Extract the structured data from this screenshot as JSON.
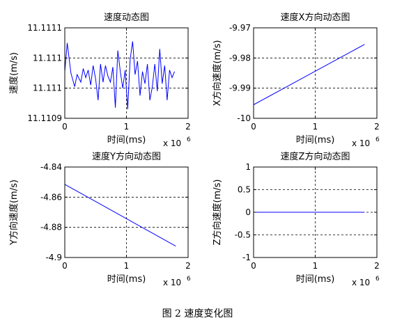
{
  "caption": "图 2  速度变化图",
  "chart_data": [
    {
      "type": "line",
      "title": "速度动态图",
      "xlabel": "时间(ms)",
      "ylabel": "速度(m/s)",
      "x_exponent_label": "x 10",
      "x_exponent": "6",
      "xlim": [
        0,
        2
      ],
      "ylim": [
        0,
        3
      ],
      "x_ticks": [
        {
          "v": 0,
          "label": "0"
        },
        {
          "v": 1,
          "label": "1"
        },
        {
          "v": 2,
          "label": "2"
        }
      ],
      "y_ticks": [
        {
          "v": 0,
          "label": "11.1109"
        },
        {
          "v": 1,
          "label": "11.111"
        },
        {
          "v": 2,
          "label": "11.111"
        },
        {
          "v": 3,
          "label": "11.1111"
        }
      ],
      "grid": true,
      "line_color": "#0000ff",
      "series": [
        {
          "x": [
            0,
            0.04,
            0.1,
            0.16,
            0.2,
            0.26,
            0.3,
            0.34,
            0.38,
            0.42,
            0.46,
            0.5,
            0.54,
            0.58,
            0.62,
            0.66,
            0.7,
            0.74,
            0.78,
            0.82,
            0.86,
            0.9,
            0.94,
            0.98,
            1.02,
            1.06,
            1.1,
            1.14,
            1.18,
            1.22,
            1.26,
            1.3,
            1.34,
            1.38,
            1.42,
            1.46,
            1.5,
            1.54,
            1.58,
            1.62,
            1.66,
            1.7,
            1.74,
            1.78
          ],
          "y": [
            1.55,
            2.5,
            1.5,
            1.05,
            1.45,
            1.2,
            1.65,
            1.35,
            1.6,
            1.1,
            1.75,
            1.3,
            0.6,
            1.8,
            1.2,
            1.75,
            1.4,
            1.2,
            1.7,
            0.35,
            2.25,
            1.55,
            1.0,
            1.6,
            0.3,
            1.95,
            2.55,
            1.45,
            1.9,
            0.75,
            1.55,
            1.15,
            1.8,
            0.6,
            1.05,
            1.8,
            0.9,
            2.3,
            1.15,
            1.75,
            0.6,
            1.6,
            1.35,
            1.55
          ]
        }
      ]
    },
    {
      "type": "line",
      "title": "速度X方向动态图",
      "xlabel": "时间(ms)",
      "ylabel": "X方向速度(m/s)",
      "x_exponent_label": "x 10",
      "x_exponent": "6",
      "xlim": [
        0,
        2
      ],
      "ylim": [
        -10,
        -9.97
      ],
      "x_ticks": [
        {
          "v": 0,
          "label": "0"
        },
        {
          "v": 1,
          "label": "1"
        },
        {
          "v": 2,
          "label": "2"
        }
      ],
      "y_ticks": [
        {
          "v": -10,
          "label": "-10"
        },
        {
          "v": -9.99,
          "label": "-9.99"
        },
        {
          "v": -9.98,
          "label": "-9.98"
        },
        {
          "v": -9.97,
          "label": "-9.97"
        }
      ],
      "grid": true,
      "line_color": "#0000ff",
      "series": [
        {
          "x": [
            0,
            1.8
          ],
          "y": [
            -9.9955,
            -9.9755
          ]
        }
      ]
    },
    {
      "type": "line",
      "title": "速度Y方向动态图",
      "xlabel": "时间(ms)",
      "ylabel": "Y方向速度(m/s)",
      "x_exponent_label": "x 10",
      "x_exponent": "6",
      "xlim": [
        0,
        2
      ],
      "ylim": [
        -4.9,
        -4.84
      ],
      "x_ticks": [
        {
          "v": 0,
          "label": "0"
        },
        {
          "v": 1,
          "label": "1"
        },
        {
          "v": 2,
          "label": "2"
        }
      ],
      "y_ticks": [
        {
          "v": -4.9,
          "label": "-4.9"
        },
        {
          "v": -4.88,
          "label": "-4.88"
        },
        {
          "v": -4.86,
          "label": "-4.86"
        },
        {
          "v": -4.84,
          "label": "-4.84"
        }
      ],
      "grid": true,
      "line_color": "#0000ff",
      "series": [
        {
          "x": [
            0,
            1.8
          ],
          "y": [
            -4.8515,
            -4.8925
          ]
        }
      ]
    },
    {
      "type": "line",
      "title": "速度Z方向动态图",
      "xlabel": "时间(ms)",
      "ylabel": "Z方向速度(m/s)",
      "x_exponent_label": "x 10",
      "x_exponent": "6",
      "xlim": [
        0,
        2
      ],
      "ylim": [
        -1,
        1
      ],
      "x_ticks": [
        {
          "v": 0,
          "label": "0"
        },
        {
          "v": 1,
          "label": "1"
        },
        {
          "v": 2,
          "label": "2"
        }
      ],
      "y_ticks": [
        {
          "v": -1,
          "label": "-1"
        },
        {
          "v": -0.5,
          "label": "-0.5"
        },
        {
          "v": 0,
          "label": "0"
        },
        {
          "v": 0.5,
          "label": "0.5"
        },
        {
          "v": 1,
          "label": "1"
        }
      ],
      "grid": true,
      "line_color": "#0000ff",
      "series": [
        {
          "x": [
            0,
            1.8
          ],
          "y": [
            0,
            0
          ]
        }
      ]
    }
  ]
}
